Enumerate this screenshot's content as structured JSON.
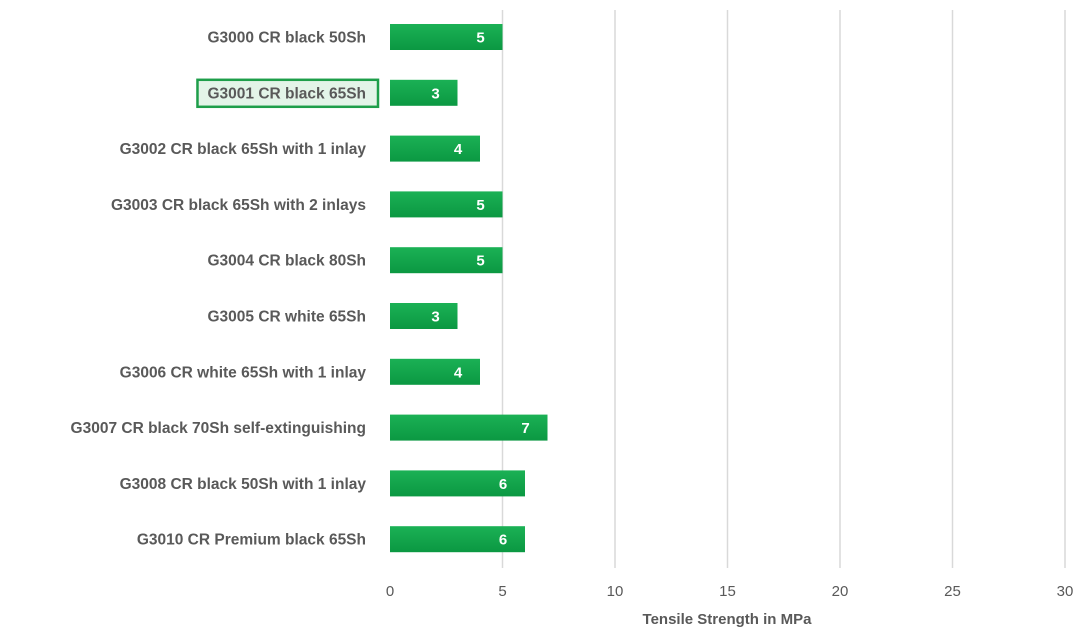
{
  "chart_data": {
    "type": "bar",
    "orientation": "horizontal",
    "categories": [
      "G3000 CR black 50Sh",
      "G3001 CR black 65Sh",
      "G3002 CR black 65Sh with 1 inlay",
      "G3003 CR black 65Sh with 2 inlays",
      "G3004 CR black 80Sh",
      "G3005 CR white 65Sh",
      "G3006 CR white 65Sh with 1 inlay",
      "G3007 CR black 70Sh self-extinguishing",
      "G3008 CR black 50Sh with 1 inlay",
      "G3010 CR Premium black 65Sh"
    ],
    "values": [
      5,
      3,
      4,
      5,
      5,
      3,
      4,
      7,
      6,
      6
    ],
    "data_labels": [
      "5",
      "3",
      "4",
      "5",
      "5",
      "3",
      "4",
      "7",
      "6",
      "6"
    ],
    "xlabel": "Tensile Strength in MPa",
    "ylabel": "",
    "title": "",
    "xlim": [
      0,
      30
    ],
    "xticks": [
      0,
      5,
      10,
      15,
      20,
      25,
      30
    ],
    "xtick_labels": [
      "0",
      "5",
      "10",
      "15",
      "20",
      "25",
      "30"
    ],
    "grid": "vertical",
    "bar_color": "#0fa54a",
    "highlighted_category": "G3001 CR black 65Sh",
    "highlight_color": "#1e9e4a"
  }
}
